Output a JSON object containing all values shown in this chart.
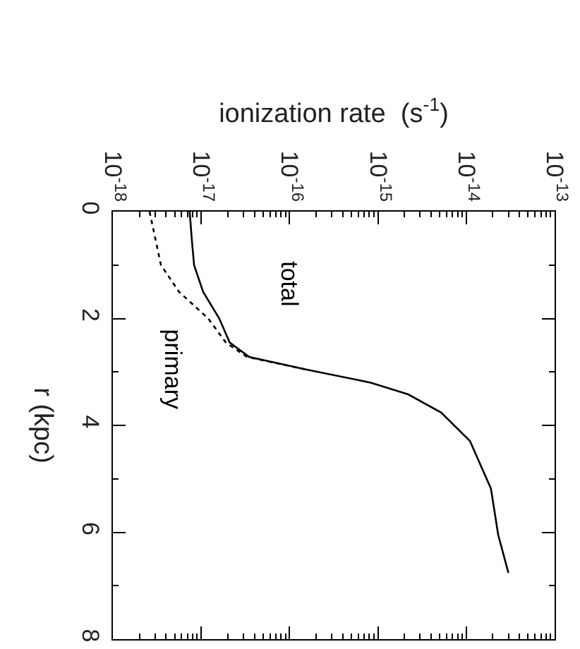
{
  "chart_data": {
    "type": "line",
    "xlabel": "ionization rate  (s$^{-1}$)",
    "ylabel": "r (kpc)",
    "log": "x",
    "marker": "none",
    "xlim": [
      1e-18,
      1e-13
    ],
    "xticks": [
      {
        "value": 1e-18,
        "label": "10$^{-18}$"
      },
      {
        "value": 1e-17,
        "label": "10$^{-17}$"
      },
      {
        "value": 1e-16,
        "label": "10$^{-16}$"
      },
      {
        "value": 1e-15,
        "label": "10$^{-15}$"
      },
      {
        "value": 1e-14,
        "label": "10$^{-14}$"
      },
      {
        "value": 1e-13,
        "label": "10$^{-13}$"
      }
    ],
    "ylim": [
      8,
      0
    ],
    "yticks": [
      0,
      2,
      4,
      6,
      8
    ],
    "series": [
      {
        "name": "total",
        "color": "#000000",
        "line_style": "solid",
        "x": [
          7.4e-18,
          7.8e-18,
          8.3e-18,
          1.05e-17,
          1.6e-17,
          2.1e-17,
          3.5e-17,
          1.5e-16,
          8.3e-16,
          2.2e-15,
          5.2e-15,
          1.1e-14,
          1.9e-14,
          2.3e-14,
          3e-14
        ],
        "values": [
          0,
          0.5,
          1,
          1.5,
          2,
          2.45,
          2.72,
          2.95,
          3.2,
          3.42,
          3.76,
          4.29,
          5.18,
          6.05,
          6.76
        ]
      },
      {
        "name": "primary",
        "color": "#000000",
        "line_style": "dotted",
        "x": [
          2.6e-18,
          3.5e-18,
          5.6e-18,
          1.2e-17,
          1.9e-17,
          3.3e-17,
          1.5e-16
        ],
        "values": [
          0,
          1,
          1.5,
          2,
          2.45,
          2.72,
          2.95
        ]
      }
    ]
  }
}
